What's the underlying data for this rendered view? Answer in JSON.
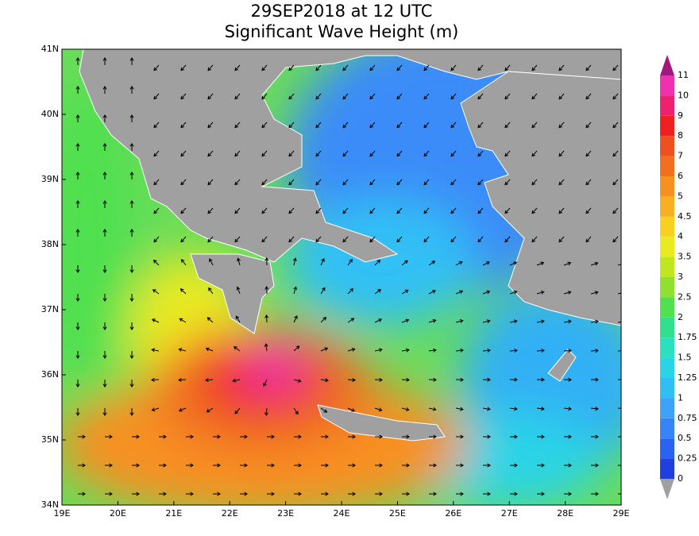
{
  "title": "29SEP2018 at 12 UTC",
  "subtitle": "Significant Wave Height (m)",
  "map": {
    "xlim": [
      19,
      29
    ],
    "ylim": [
      34,
      41
    ],
    "xticks": [
      {
        "value": 19,
        "label": "19E"
      },
      {
        "value": 20,
        "label": "20E"
      },
      {
        "value": 21,
        "label": "21E"
      },
      {
        "value": 22,
        "label": "22E"
      },
      {
        "value": 23,
        "label": "23E"
      },
      {
        "value": 24,
        "label": "24E"
      },
      {
        "value": 25,
        "label": "25E"
      },
      {
        "value": 26,
        "label": "26E"
      },
      {
        "value": 27,
        "label": "27E"
      },
      {
        "value": 28,
        "label": "28E"
      },
      {
        "value": 29,
        "label": "29E"
      }
    ],
    "yticks": [
      {
        "value": 34,
        "label": "34N"
      },
      {
        "value": 35,
        "label": "35N"
      },
      {
        "value": 36,
        "label": "36N"
      },
      {
        "value": 37,
        "label": "37N"
      },
      {
        "value": 38,
        "label": "38N"
      },
      {
        "value": 39,
        "label": "39N"
      },
      {
        "value": 40,
        "label": "40N"
      },
      {
        "value": 41,
        "label": "41N"
      }
    ]
  },
  "colorbar": {
    "levels": [
      0,
      0.25,
      0.5,
      0.75,
      1,
      1.25,
      1.5,
      1.75,
      2,
      2.5,
      3,
      3.5,
      4,
      4.5,
      5,
      6,
      7,
      8,
      9,
      10,
      11
    ],
    "colors": [
      "#1f3fe0",
      "#2a62f2",
      "#3784f8",
      "#3ea2f8",
      "#30bff5",
      "#2ad4e6",
      "#2ae0bf",
      "#30e08c",
      "#50e050",
      "#90e030",
      "#c0e620",
      "#eaea20",
      "#f8d020",
      "#f8b020",
      "#f89020",
      "#f07020",
      "#f05020",
      "#f02020",
      "#f02070",
      "#f030b0"
    ],
    "over_color": "#a01880",
    "under_color": "#a0a0a0"
  }
}
